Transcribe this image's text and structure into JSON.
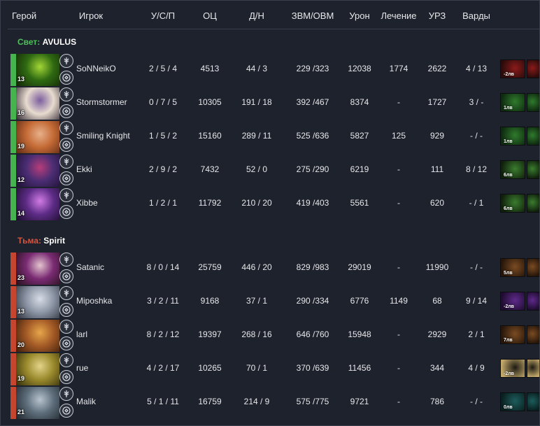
{
  "header": {
    "hero": "Герой",
    "player": "Игрок",
    "kda": "У/С/П",
    "networth": "ОЦ",
    "lh_dn": "Д/Н",
    "gpm_xpm": "ЗВМ/ОВМ",
    "damage": "Урон",
    "healing": "Лечение",
    "building_damage": "УРЗ",
    "wards": "Варды"
  },
  "teams": [
    {
      "side": "Свет:",
      "name": "AVULUS",
      "side_color": "#4ec25a",
      "bar_color": "#45b44f",
      "players": [
        {
          "level": "13",
          "player": "SoNNeikO",
          "kda": "2 / 5 / 4",
          "networth": "4513",
          "lh_dn": "44 / 3",
          "gpm_xpm": "229 /323",
          "damage": "12038",
          "healing": "1774",
          "building": "2622",
          "wards": "4 / 13",
          "item_label": "-2лв",
          "portrait": [
            "#2f6a12",
            "#a3d636",
            "#132407"
          ],
          "item": [
            "#8b1a1a",
            "#2a0b0b"
          ],
          "badge_icon": "tree-badge-icon",
          "facet_icon": "sun-icon"
        },
        {
          "level": "16",
          "player": "Stormstormer",
          "kda": "0 / 7 / 5",
          "networth": "10305",
          "lh_dn": "191 / 18",
          "gpm_xpm": "392 /467",
          "damage": "8374",
          "healing": "-",
          "building": "1727",
          "wards": "3 / -",
          "item_label": "1лв",
          "portrait": [
            "#e8dccf",
            "#7b5d9e",
            "#2e2430"
          ],
          "item": [
            "#2f7a2c",
            "#0f2a10"
          ],
          "badge_icon": "tree-badge-icon",
          "facet_icon": "skull-icon"
        },
        {
          "level": "19",
          "player": "Smiling Knight",
          "kda": "1 / 5 / 2",
          "networth": "15160",
          "lh_dn": "289 / 11",
          "gpm_xpm": "525 /636",
          "damage": "5827",
          "healing": "125",
          "building": "929",
          "wards": "- / -",
          "item_label": "1лв",
          "portrait": [
            "#c46a35",
            "#e7b08a",
            "#5a2814"
          ],
          "item": [
            "#2f7a2c",
            "#0f2a10"
          ],
          "badge_icon": "tree-badge-icon",
          "facet_icon": "shield-icon"
        },
        {
          "level": "12",
          "player": "Ekki",
          "kda": "2 / 9 / 2",
          "networth": "7432",
          "lh_dn": "52 / 0",
          "gpm_xpm": "275 /290",
          "damage": "6219",
          "healing": "-",
          "building": "111",
          "wards": "8 / 12",
          "item_label": "6лв",
          "portrait": [
            "#4a2d73",
            "#b63d7a",
            "#1c1030"
          ],
          "item": [
            "#3a7c2e",
            "#101f0c"
          ],
          "badge_icon": "tree-badge-icon",
          "facet_icon": "flame-icon"
        },
        {
          "level": "14",
          "player": "Xibbe",
          "kda": "1 / 2 / 1",
          "networth": "11792",
          "lh_dn": "210 / 20",
          "gpm_xpm": "419 /403",
          "damage": "5561",
          "healing": "-",
          "building": "620",
          "wards": "- / 1",
          "item_label": "6лв",
          "portrait": [
            "#5d2c86",
            "#d07be5",
            "#1a0c29"
          ],
          "item": [
            "#3a7c2e",
            "#101f0c"
          ],
          "badge_icon": "tree-badge-icon",
          "facet_icon": "sword-icon"
        }
      ]
    },
    {
      "side": "Тьма:",
      "name": "Spirit",
      "side_color": "#d8533c",
      "bar_color": "#c5452f",
      "players": [
        {
          "level": "23",
          "player": "Satanic",
          "kda": "8 / 0 / 14",
          "networth": "25759",
          "lh_dn": "446 / 20",
          "gpm_xpm": "829 /983",
          "damage": "29019",
          "healing": "-",
          "building": "11990",
          "wards": "- / -",
          "item_label": "5лв",
          "portrait": [
            "#7a2b73",
            "#e4c4cf",
            "#241018"
          ],
          "item": [
            "#7a4b22",
            "#26160a"
          ],
          "badge_icon": "tree-badge-icon",
          "facet_icon": "dagger-icon"
        },
        {
          "level": "13",
          "player": "Miposhka",
          "kda": "3 / 2 / 11",
          "networth": "9168",
          "lh_dn": "37 / 1",
          "gpm_xpm": "290 /334",
          "damage": "6776",
          "healing": "1149",
          "building": "68",
          "wards": "9 / 14",
          "item_label": "-2лв",
          "portrait": [
            "#8d96a6",
            "#d8dde6",
            "#2b2f3a"
          ],
          "item": [
            "#5d2a8a",
            "#1f0c30"
          ],
          "badge_icon": "tree-badge-icon",
          "facet_icon": "target-icon"
        },
        {
          "level": "20",
          "player": "larl",
          "kda": "8 / 2 / 12",
          "networth": "19397",
          "lh_dn": "268 / 16",
          "gpm_xpm": "646 /760",
          "damage": "15948",
          "healing": "-",
          "building": "2929",
          "wards": "2 / 1",
          "item_label": "7лв",
          "portrait": [
            "#a35a26",
            "#e7a64b",
            "#3a1c0a"
          ],
          "item": [
            "#7a4b22",
            "#26160a"
          ],
          "badge_icon": "tree-badge-icon",
          "facet_icon": "monkey-icon"
        },
        {
          "level": "19",
          "player": "rue",
          "kda": "4 / 2 / 17",
          "networth": "10265",
          "lh_dn": "70 / 1",
          "gpm_xpm": "370 /639",
          "damage": "11456",
          "healing": "-",
          "building": "344",
          "wards": "4 / 9",
          "item_label": "-2лв",
          "portrait": [
            "#9a8a2c",
            "#e2d38a",
            "#2e2a0c"
          ],
          "item": [
            "#1d1a12",
            "#c2a86a"
          ],
          "badge_icon": "tree-badge-icon",
          "facet_icon": "leaf-icon"
        },
        {
          "level": "21",
          "player": "Malik",
          "kda": "5 / 1 / 11",
          "networth": "16759",
          "lh_dn": "214 / 9",
          "gpm_xpm": "575 /775",
          "damage": "9721",
          "healing": "-",
          "building": "786",
          "wards": "- / -",
          "item_label": "0лв",
          "portrait": [
            "#5d6d7a",
            "#b7c4cf",
            "#1e252c"
          ],
          "item": [
            "#1d5c5c",
            "#0a1f1f"
          ],
          "badge_icon": "tree-badge-icon",
          "facet_icon": "spiral-icon"
        }
      ]
    }
  ]
}
